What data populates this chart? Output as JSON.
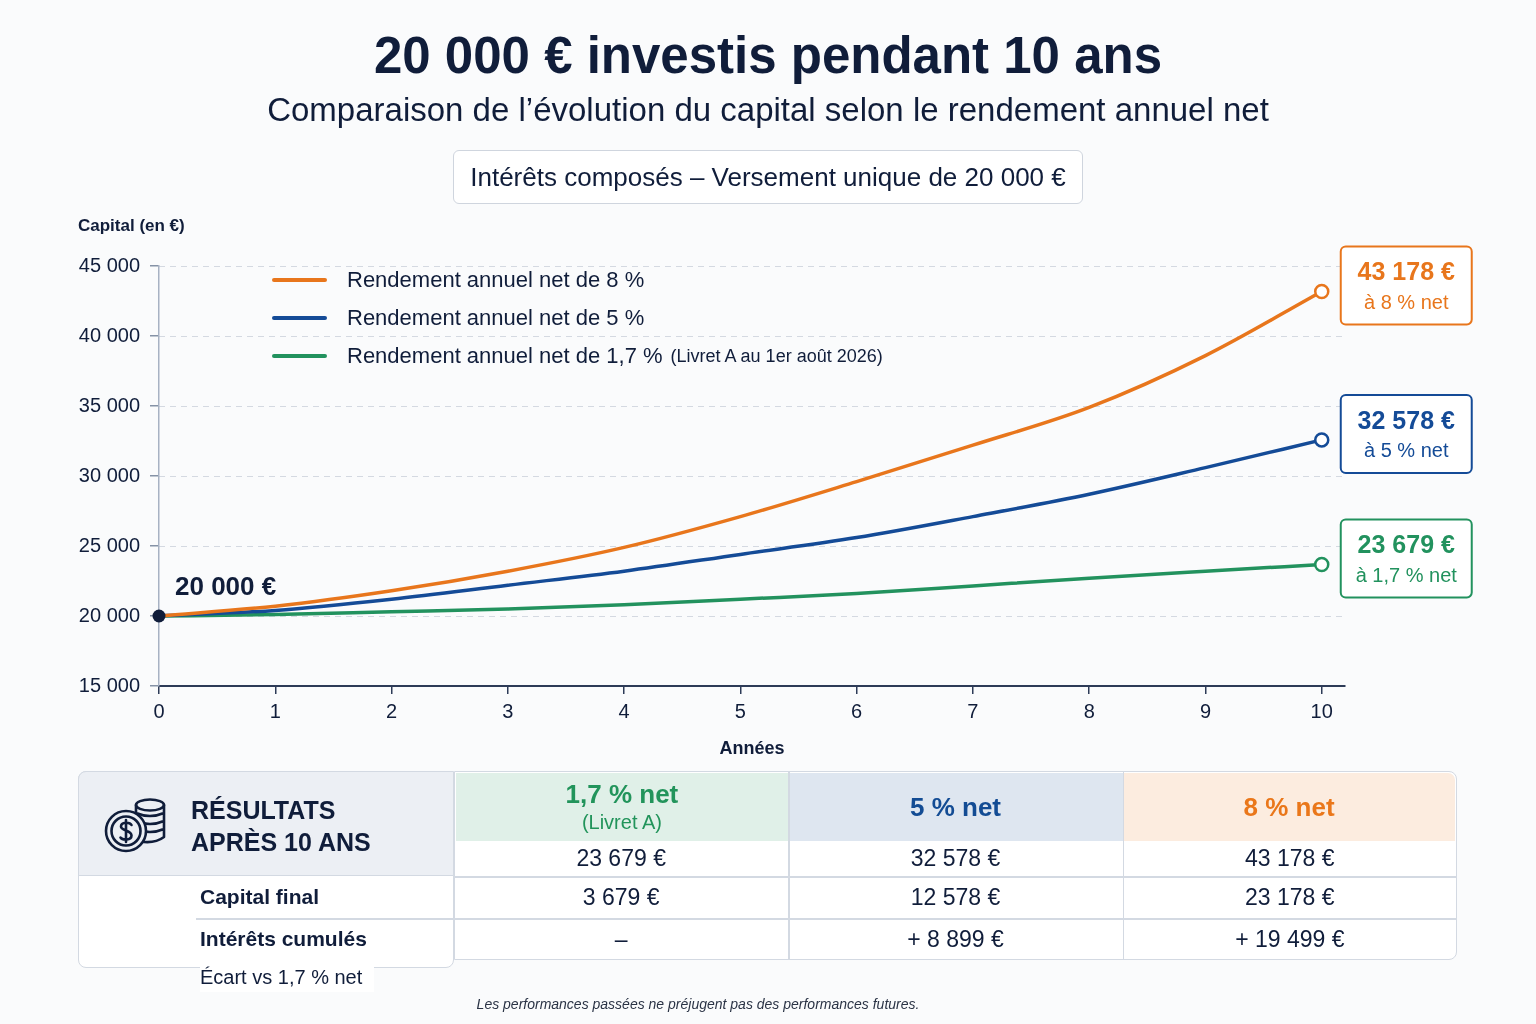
{
  "chart_data": [
    {
      "type": "line",
      "title": "20 000 € investis pendant 10 ans",
      "subtitle": "Comparaison de l’évolution du capital selon le rendement annuel net",
      "xlabel": "Années",
      "ylabel": "Capital (en €)",
      "x": [
        0,
        1,
        2,
        3,
        4,
        5,
        6,
        7,
        8,
        9,
        10
      ],
      "series": [
        {
          "name": "Rendement annuel net de 8 %",
          "color": "#e8761c",
          "values": [
            20000,
            20700,
            21800,
            23200,
            24900,
            27100,
            29600,
            32200,
            34900,
            38600,
            43178
          ],
          "value_labels": [
            "20 000 €",
            null,
            null,
            null,
            null,
            null,
            null,
            null,
            null,
            null,
            "43 178 €\nà 8 % net"
          ]
        },
        {
          "name": "Rendement annuel net de 5 %",
          "color": "#144b97",
          "values": [
            20000,
            20400,
            21200,
            22200,
            23200,
            24400,
            25600,
            27100,
            28700,
            30600,
            32578
          ],
          "value_labels": [
            null,
            null,
            null,
            null,
            null,
            null,
            null,
            null,
            null,
            null,
            "32 578 €\nà 5 % net"
          ]
        },
        {
          "name": "Rendement annuel net de 1,7 %",
          "color": "#22925e",
          "values": [
            20000,
            20100,
            20300,
            20500,
            20800,
            21200,
            21600,
            22150,
            22700,
            23200,
            23679
          ],
          "value_labels": [
            null,
            null,
            null,
            null,
            null,
            null,
            null,
            null,
            null,
            null,
            "23 679 €\nà 1,7 % net"
          ]
        }
      ],
      "xlim": [
        0,
        10.2
      ],
      "xticks": [
        0,
        1,
        2,
        3,
        4,
        5,
        6,
        7,
        8,
        9,
        10
      ],
      "ylim": [
        15000,
        45000
      ],
      "yticks": [
        {
          "value": 15000,
          "label": "15 000"
        },
        {
          "value": 20000,
          "label": "20 000"
        },
        {
          "value": 25000,
          "label": "25 000"
        },
        {
          "value": 30000,
          "label": "30 000"
        },
        {
          "value": 35000,
          "label": "35 000"
        },
        {
          "value": 40000,
          "label": "40 000"
        },
        {
          "value": 45000,
          "label": "45 000"
        }
      ],
      "grid": "y",
      "legend": "top left",
      "line_style": "solid",
      "annotations": [
        "Intérêts composés – Versement unique de 20 000 €",
        "(Livret A au 1er août 2026)"
      ]
    },
    {
      "type": "other",
      "title": "RÉSULTATS APRÈS 10 ANS",
      "categories": [
        "1,7 % net\n(Livret A)",
        "5 % net",
        "8 % net"
      ],
      "colors": [
        "#e0f0e8",
        "#dee6f0",
        "#fcecdf"
      ],
      "y_categories": [
        "Capital final",
        "Intérêts cumulés",
        "Écart vs 1,7 % net"
      ],
      "cell_labels": [
        [
          "23 679 €",
          "32 578 €",
          "43 178 €"
        ],
        [
          "3 679 €",
          "12 578 €",
          "23 178 €"
        ],
        [
          "–",
          "+ 8 899 €",
          "+ 19 499 €"
        ]
      ],
      "annotations": [
        "Les performances passées ne préjugent pas des performances futures."
      ]
    }
  ]
}
